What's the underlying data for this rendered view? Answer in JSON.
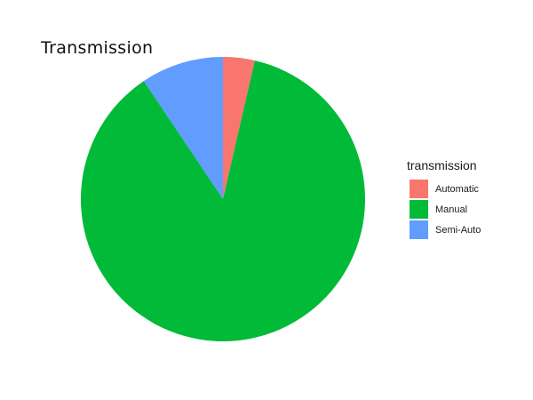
{
  "chart_data": {
    "type": "pie",
    "title": "Transmission",
    "legend_title": "transmission",
    "legend_position": "right",
    "categories": [
      "Automatic",
      "Manual",
      "Semi-Auto"
    ],
    "values": [
      3.6,
      87.0,
      9.4
    ],
    "colors": [
      "#F8766D",
      "#00BA38",
      "#619CFF"
    ]
  }
}
